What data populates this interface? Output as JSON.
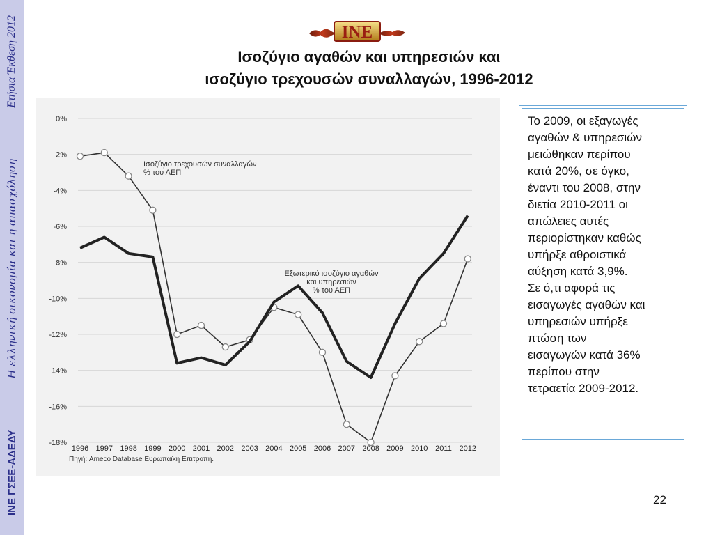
{
  "sidebar": {
    "organization": "ΙΝΕ ΓΣΕΕ-ΑΔΕΔΥ",
    "subtitle": "Η ελληνική οικονομία  και η απασχόληση",
    "report": "Ετήσια Έκθεση 2012"
  },
  "logo": {
    "text": "INE"
  },
  "title": {
    "line1": "Ισοζύγιο αγαθών και υπηρεσιών και",
    "line2": "ισοζύγιο τρεχουσών συναλλαγών, 1996-2012"
  },
  "chart_data": {
    "type": "line",
    "categories": [
      "1996",
      "1997",
      "1998",
      "1999",
      "2000",
      "2001",
      "2002",
      "2003",
      "2004",
      "2005",
      "2006",
      "2007",
      "2008",
      "2009",
      "2010",
      "2011",
      "2012"
    ],
    "y_ticks": [
      "0%",
      "-2%",
      "-4%",
      "-6%",
      "-8%",
      "-10%",
      "-12%",
      "-14%",
      "-16%",
      "-18%"
    ],
    "ylim": [
      -18,
      0
    ],
    "grid": true,
    "series": [
      {
        "values": [
          -2.1,
          -1.9,
          -3.2,
          -5.1,
          -12.0,
          -11.5,
          -12.7,
          -12.3,
          -10.5,
          -10.9,
          -13.0,
          -17.0,
          -18.0,
          -14.3,
          -12.4,
          -11.4,
          -7.8
        ],
        "style": "thin-with-markers",
        "color": "#333333"
      },
      {
        "values": [
          -7.2,
          -6.6,
          -7.5,
          -7.7,
          -13.6,
          -13.3,
          -13.7,
          -12.4,
          -10.2,
          -9.3,
          -10.8,
          -13.5,
          -14.4,
          -11.4,
          -8.9,
          -7.5,
          -5.4
        ],
        "style": "thick",
        "color": "#222222"
      }
    ],
    "annotations": [
      {
        "lines": [
          "Ισοζύγιο τρεχουσών συναλλαγών",
          "% του ΑΕΠ"
        ]
      },
      {
        "lines": [
          "Εξωτερικό ισοζύγιο αγαθών",
          "και υπηρεσιών",
          "% του ΑΕΠ"
        ]
      }
    ],
    "source": "Πηγή: Ameco Database Ευρωπαϊκή Επιτροπή."
  },
  "textbox": {
    "lines": [
      "Το 2009, οι εξαγωγές",
      "αγαθών & υπηρεσιών",
      "μειώθηκαν περίπου",
      "κατά 20%, σε όγκο,",
      "έναντι του 2008, στην",
      "διετία 2010-2011 οι",
      "απώλειες αυτές",
      "περιορίστηκαν καθώς",
      "υπήρξε αθροιστικά",
      "αύξηση κατά 3,9%.",
      "Σε ό,τι αφορά τις",
      "εισαγωγές αγαθών και",
      "υπηρεσιών υπήρξε",
      "πτώση των",
      "εισαγωγών κατά 36%",
      "περίπου στην",
      "τετραετία 2009-2012."
    ]
  },
  "page_number": "22"
}
